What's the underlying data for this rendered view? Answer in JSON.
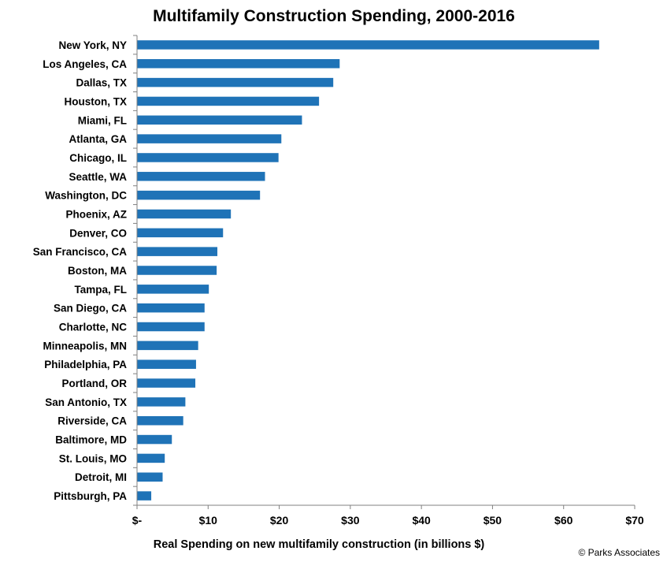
{
  "chart_data": {
    "type": "bar",
    "orientation": "horizontal",
    "title": "Multifamily Construction Spending, 2000-2016",
    "xlabel": "Real Spending on new multifamily  construction (in billions $)",
    "ylabel": "",
    "categories": [
      "New York, NY",
      "Los Angeles, CA",
      "Dallas, TX",
      "Houston, TX",
      "Miami, FL",
      "Atlanta, GA",
      "Chicago, IL",
      "Seattle, WA",
      "Washington, DC",
      "Phoenix, AZ",
      "Denver, CO",
      "San Francisco, CA",
      "Boston, MA",
      "Tampa, FL",
      "San Diego, CA",
      "Charlotte, NC",
      "Minneapolis, MN",
      "Philadelphia, PA",
      "Portland, OR",
      "San Antonio, TX",
      "Riverside, CA",
      "Baltimore, MD",
      "St. Louis, MO",
      "Detroit, MI",
      "Pittsburgh, PA"
    ],
    "values": [
      65.0,
      28.5,
      27.6,
      25.6,
      23.2,
      20.3,
      19.9,
      18.0,
      17.3,
      13.2,
      12.1,
      11.3,
      11.2,
      10.1,
      9.5,
      9.5,
      8.6,
      8.3,
      8.2,
      6.8,
      6.5,
      4.9,
      3.9,
      3.6,
      2.0
    ],
    "xlim": [
      0,
      70
    ],
    "xticks": [
      0,
      10,
      20,
      30,
      40,
      50,
      60,
      70
    ],
    "xtick_labels": [
      "$-",
      "$10",
      "$20",
      "$30",
      "$40",
      "$50",
      "$60",
      "$70"
    ],
    "bar_color": "#1f73b7",
    "grid": false,
    "legend": "none"
  },
  "credit": "© Parks Associates"
}
